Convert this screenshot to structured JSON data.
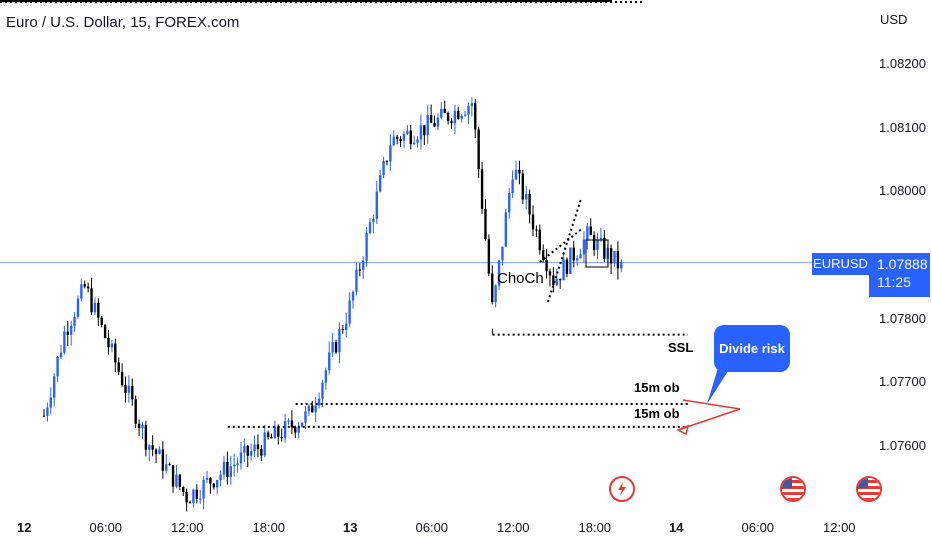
{
  "header": {
    "title": "Euro / U.S. Dollar, 15, FOREX.com",
    "currency": "USD"
  },
  "price_badge": {
    "symbol": "EURUSD",
    "price": "1.07888",
    "countdown": "11:25"
  },
  "annotations": {
    "choch": "ChoCh",
    "ssl": "SSL",
    "ob_upper": "15m ob",
    "ob_lower": "15m ob",
    "callout": "Divide risk"
  },
  "colors": {
    "up": "#2962ff",
    "down": "#000000",
    "accent": "#2962ff",
    "arrow": "#e53935"
  },
  "events": [
    "lightning-icon",
    "us-flag-icon",
    "us-flag-icon"
  ],
  "chart_data": {
    "type": "candlestick",
    "title": "Euro / U.S. Dollar, 15, FOREX.com",
    "symbol": "EURUSD",
    "timeframe": "15",
    "ylabel": "USD",
    "ylim": [
      1.0751,
      1.0845
    ],
    "y_ticks": [
      "1.08200",
      "1.08100",
      "1.08000",
      "1.07800",
      "1.07700",
      "1.07600"
    ],
    "x_ticks": [
      "12",
      "06:00",
      "12:00",
      "18:00",
      "13",
      "06:00",
      "12:00",
      "18:00",
      "14",
      "06:00",
      "12:00"
    ],
    "last_price": 1.07888,
    "levels": [
      {
        "label": "SSL",
        "price": 1.07775
      },
      {
        "label": "15m ob",
        "price": 1.07666
      },
      {
        "label": "15m ob",
        "price": 1.0763
      }
    ],
    "approx_path": [
      {
        "time": "12 00:00",
        "price": 1.0752
      },
      {
        "time": "12 03:00",
        "price": 1.0778
      },
      {
        "time": "12 04:30",
        "price": 1.0785
      },
      {
        "time": "12 09:00",
        "price": 1.0761
      },
      {
        "time": "12 12:00",
        "price": 1.0752
      },
      {
        "time": "12 16:00",
        "price": 1.0758
      },
      {
        "time": "12 21:00",
        "price": 1.0765
      },
      {
        "time": "13 00:00",
        "price": 1.0782
      },
      {
        "time": "13 03:00",
        "price": 1.0808
      },
      {
        "time": "13 05:30",
        "price": 1.081
      },
      {
        "time": "13 09:00",
        "price": 1.0814
      },
      {
        "time": "13 10:30",
        "price": 1.0781
      },
      {
        "time": "13 12:00",
        "price": 1.0804
      },
      {
        "time": "13 15:00",
        "price": 1.0786
      },
      {
        "time": "13 17:30",
        "price": 1.0793
      },
      {
        "time": "13 20:00",
        "price": 1.0788
      }
    ]
  }
}
